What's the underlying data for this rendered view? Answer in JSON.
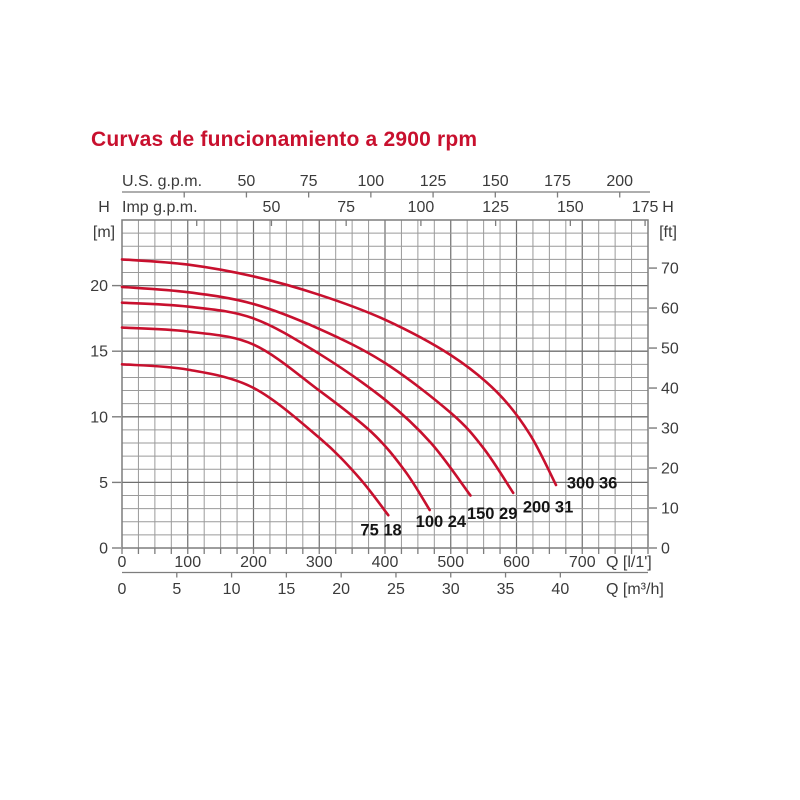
{
  "title": "Curvas de funcionamiento a 2900 rpm",
  "colors": {
    "accent": "#c8102e",
    "curve": "#c8102e",
    "grid_minor": "#9a9a9a",
    "grid_major": "#6f6f6f",
    "axis": "#7d7d7d",
    "text": "#3b3b3b",
    "annotation_text": "#141414"
  },
  "chart_data": {
    "type": "line",
    "title": "Curvas de funcionamiento a 2900 rpm",
    "grid": true,
    "x_axes": {
      "us_gpm": {
        "label": "U.S. g.p.m.",
        "tick_labels": [
          50,
          75,
          100,
          125,
          150,
          175,
          200
        ],
        "minor_tick_step": 25,
        "l_per_min_per_unit": 3.785
      },
      "imp_gpm": {
        "label": "Imp g.p.m.",
        "tick_labels": [
          50,
          75,
          100,
          125,
          150,
          175
        ],
        "minor_tick_step": 25,
        "l_per_min_per_unit": 4.546
      },
      "l_min": {
        "label": "Q [l/1']",
        "tick_labels": [
          0,
          100,
          200,
          300,
          400,
          500,
          600,
          700
        ],
        "minor_tick_step": 25,
        "range": [
          0,
          800
        ]
      },
      "m3_h": {
        "label": "Q [m³/h]",
        "tick_labels": [
          0,
          5,
          10,
          15,
          20,
          25,
          30,
          35,
          40
        ],
        "l_per_min_per_unit": 16.6667
      }
    },
    "y_axes": {
      "meters": {
        "label": "H",
        "unit": "[m]",
        "tick_labels": [
          0,
          5,
          10,
          15,
          20
        ],
        "range": [
          0,
          25
        ],
        "minor_step": 1
      },
      "feet": {
        "label": "H",
        "unit": "[ft]",
        "tick_labels": [
          0,
          10,
          20,
          30,
          40,
          50,
          60,
          70
        ],
        "m_per_unit": 0.3048
      }
    },
    "series": [
      {
        "name": "75 18",
        "points": [
          [
            0,
            14.0
          ],
          [
            100,
            13.6
          ],
          [
            200,
            12.2
          ],
          [
            300,
            8.4
          ],
          [
            360,
            5.4
          ],
          [
            405,
            2.5
          ]
        ],
        "label_at": [
          394,
          1.35
        ]
      },
      {
        "name": "100 24",
        "points": [
          [
            0,
            16.8
          ],
          [
            100,
            16.5
          ],
          [
            200,
            15.5
          ],
          [
            300,
            12.0
          ],
          [
            380,
            8.8
          ],
          [
            430,
            5.9
          ],
          [
            468,
            2.9
          ]
        ],
        "label_at": [
          485,
          2.0
        ]
      },
      {
        "name": "150 29",
        "points": [
          [
            0,
            18.7
          ],
          [
            100,
            18.4
          ],
          [
            200,
            17.5
          ],
          [
            300,
            14.8
          ],
          [
            400,
            11.3
          ],
          [
            470,
            8.0
          ],
          [
            530,
            4.0
          ]
        ],
        "label_at": [
          563,
          2.6
        ]
      },
      {
        "name": "200 31",
        "points": [
          [
            0,
            19.9
          ],
          [
            100,
            19.5
          ],
          [
            200,
            18.6
          ],
          [
            300,
            16.7
          ],
          [
            400,
            14.1
          ],
          [
            500,
            10.3
          ],
          [
            550,
            7.6
          ],
          [
            595,
            4.2
          ]
        ],
        "label_at": [
          648,
          3.1
        ]
      },
      {
        "name": "300 36",
        "points": [
          [
            0,
            22.0
          ],
          [
            100,
            21.6
          ],
          [
            200,
            20.7
          ],
          [
            300,
            19.3
          ],
          [
            400,
            17.4
          ],
          [
            500,
            14.7
          ],
          [
            570,
            11.9
          ],
          [
            620,
            8.7
          ],
          [
            660,
            4.8
          ]
        ],
        "label_at": [
          715,
          4.9
        ]
      }
    ]
  }
}
